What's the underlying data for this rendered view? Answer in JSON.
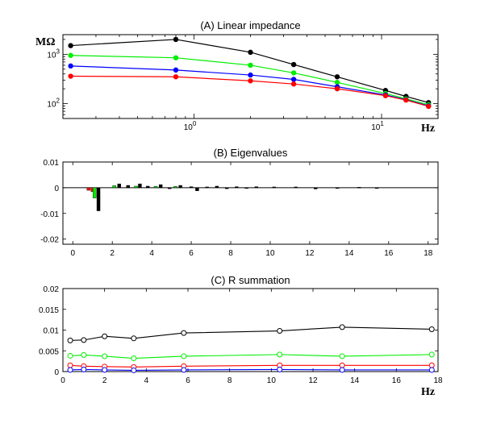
{
  "colors": {
    "black": "#000000",
    "green": "#00ee00",
    "blue": "#0000ff",
    "red": "#ff0000"
  },
  "chart_data": [
    {
      "type": "line",
      "title": "(A) Linear impedance",
      "ylabel": "MΩ",
      "xlabel": "Hz",
      "xscale": "log",
      "yscale": "log",
      "xlim": [
        0.2,
        20
      ],
      "ylim": [
        50,
        2500
      ],
      "xticks": [
        {
          "value": 1,
          "base": "10",
          "exp": "0"
        },
        {
          "value": 10,
          "base": "10",
          "exp": "1"
        }
      ],
      "yticks": [
        {
          "value": 100,
          "base": "10",
          "exp": "2"
        },
        {
          "value": 1000,
          "base": "10",
          "exp": "3"
        }
      ],
      "x": [
        0.22,
        0.8,
        2.0,
        3.4,
        5.8,
        10.5,
        13.5,
        17.8
      ],
      "series": [
        {
          "name": "black",
          "color": "#000000",
          "values": [
            1500,
            2000,
            1100,
            620,
            350,
            185,
            140,
            105
          ]
        },
        {
          "name": "green",
          "color": "#00ee00",
          "values": [
            950,
            850,
            600,
            420,
            270,
            160,
            125,
            95
          ]
        },
        {
          "name": "blue",
          "color": "#0000ff",
          "values": [
            580,
            480,
            380,
            310,
            220,
            150,
            120,
            90
          ]
        },
        {
          "name": "red",
          "color": "#ff0000",
          "values": [
            360,
            350,
            290,
            250,
            200,
            145,
            118,
            88
          ]
        }
      ]
    },
    {
      "type": "bar",
      "title": "(B) Eigenvalues",
      "xlim": [
        -0.5,
        18.5
      ],
      "ylim": [
        -0.022,
        0.01
      ],
      "xticks": [
        "0",
        "2",
        "4",
        "6",
        "8",
        "10",
        "12",
        "14",
        "16",
        "18"
      ],
      "yticks": [
        "0.01",
        "0",
        "-0.01",
        "-0.02"
      ],
      "bars": [
        {
          "x": 0.8,
          "color": "#ff0000",
          "value": -0.001
        },
        {
          "x": 1.0,
          "color": "#ff0000",
          "value": -0.0015
        },
        {
          "x": 1.1,
          "color": "#00ee00",
          "value": -0.004
        },
        {
          "x": 1.3,
          "color": "#000000",
          "value": -0.009
        },
        {
          "x": 2.1,
          "color": "#00ee00",
          "value": 0.0008
        },
        {
          "x": 2.35,
          "color": "#000000",
          "value": 0.0015
        },
        {
          "x": 2.8,
          "color": "#000000",
          "value": 0.0009
        },
        {
          "x": 3.2,
          "color": "#00ee00",
          "value": 0.0006
        },
        {
          "x": 3.4,
          "color": "#000000",
          "value": 0.0015
        },
        {
          "x": 3.8,
          "color": "#000000",
          "value": 0.0006
        },
        {
          "x": 4.2,
          "color": "#00ee00",
          "value": 0.0005
        },
        {
          "x": 4.45,
          "color": "#000000",
          "value": 0.0012
        },
        {
          "x": 4.9,
          "color": "#000000",
          "value": -0.0004
        },
        {
          "x": 5.2,
          "color": "#00ee00",
          "value": 0.0005
        },
        {
          "x": 5.45,
          "color": "#000000",
          "value": 0.0009
        },
        {
          "x": 6.0,
          "color": "#000000",
          "value": 0.0004
        },
        {
          "x": 6.3,
          "color": "#000000",
          "value": -0.0012
        },
        {
          "x": 6.8,
          "color": "#000000",
          "value": 0.0003
        },
        {
          "x": 7.3,
          "color": "#000000",
          "value": 0.0006
        },
        {
          "x": 7.8,
          "color": "#000000",
          "value": -0.0004
        },
        {
          "x": 8.3,
          "color": "#000000",
          "value": 0.0004
        },
        {
          "x": 8.8,
          "color": "#000000",
          "value": -0.0003
        },
        {
          "x": 9.3,
          "color": "#000000",
          "value": 0.0004
        },
        {
          "x": 10.2,
          "color": "#000000",
          "value": 0.0003
        },
        {
          "x": 11.3,
          "color": "#000000",
          "value": 0.0003
        },
        {
          "x": 12.3,
          "color": "#000000",
          "value": -0.0005
        },
        {
          "x": 13.4,
          "color": "#000000",
          "value": -0.0003
        },
        {
          "x": 14.5,
          "color": "#000000",
          "value": 0.0002
        },
        {
          "x": 15.4,
          "color": "#000000",
          "value": -0.0002
        }
      ]
    },
    {
      "type": "line",
      "title": "(C) R summation",
      "xlabel": "Hz",
      "xlim": [
        0,
        18
      ],
      "ylim": [
        0,
        0.02
      ],
      "xticks": [
        "0",
        "2",
        "4",
        "6",
        "8",
        "10",
        "12",
        "14",
        "16",
        "18"
      ],
      "yticks": [
        "0.02",
        "0.015",
        "0.01",
        "0.005",
        "0"
      ],
      "x": [
        0.35,
        1.0,
        2.0,
        3.4,
        5.8,
        10.4,
        13.4,
        17.7
      ],
      "series": [
        {
          "name": "black",
          "color": "#000000",
          "values": [
            0.0075,
            0.0076,
            0.0085,
            0.008,
            0.0093,
            0.0098,
            0.0107,
            0.0102
          ]
        },
        {
          "name": "green",
          "color": "#00ee00",
          "values": [
            0.0038,
            0.004,
            0.0037,
            0.0032,
            0.0037,
            0.0041,
            0.0037,
            0.0041
          ]
        },
        {
          "name": "red",
          "color": "#ff0000",
          "values": [
            0.0015,
            0.0013,
            0.0012,
            0.0011,
            0.0013,
            0.0015,
            0.0015,
            0.0015
          ]
        },
        {
          "name": "blue",
          "color": "#0000ff",
          "values": [
            0.0004,
            0.0005,
            0.0004,
            0.0003,
            0.0004,
            0.0005,
            0.0004,
            0.0004
          ]
        }
      ]
    }
  ]
}
